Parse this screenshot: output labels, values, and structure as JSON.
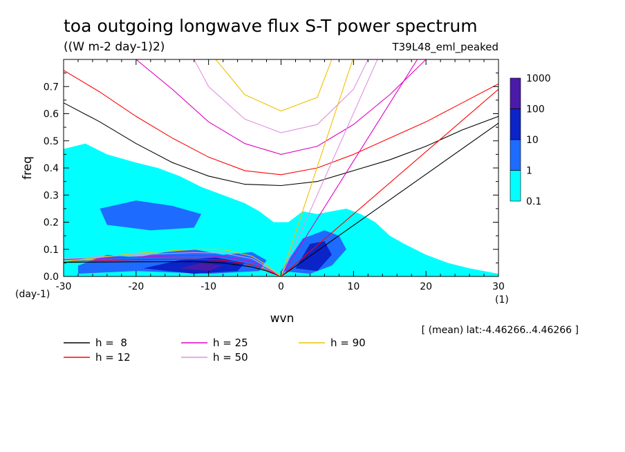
{
  "chart_data": {
    "type": "heatmap",
    "title": "toa outgoing longwave flux S-T power spectrum",
    "subtitle": "((W m-2 day-1)2)",
    "run_label": "T39L48_eml_peaked",
    "xlabel": "wvn",
    "ylabel": "freq",
    "x_unit": "(1)",
    "y_unit": "(day-1)",
    "annotation": "[ (mean) lat:-4.46266..4.46266 ]",
    "xlim": [
      -30,
      30
    ],
    "ylim": [
      0,
      0.8
    ],
    "x_ticks": [
      -30,
      -20,
      -10,
      0,
      10,
      20,
      30
    ],
    "y_ticks": [
      0.0,
      0.1,
      0.2,
      0.3,
      0.4,
      0.5,
      0.6,
      0.7
    ],
    "x_tick_labels": [
      "-30",
      "-20",
      "-10",
      "0",
      "10",
      "20",
      "30"
    ],
    "y_tick_labels": [
      "0.0",
      "0.1",
      "0.2",
      "0.3",
      "0.4",
      "0.5",
      "0.6",
      "0.7"
    ],
    "colorbar": {
      "levels": [
        0.1,
        1,
        10,
        100,
        1000
      ],
      "level_labels": [
        "0.1",
        "1",
        "10",
        "100",
        "1000"
      ],
      "colors": [
        "#00ffff",
        "#1e6bff",
        "#0a24c8",
        "#4a1aa8"
      ]
    },
    "power_regions": [
      {
        "level": 0,
        "polygon": [
          [
            -30,
            0.0
          ],
          [
            -30,
            0.47
          ],
          [
            -27,
            0.49
          ],
          [
            -24,
            0.45
          ],
          [
            -20,
            0.42
          ],
          [
            -17,
            0.4
          ],
          [
            -14,
            0.37
          ],
          [
            -11,
            0.33
          ],
          [
            -8,
            0.3
          ],
          [
            -5,
            0.27
          ],
          [
            -3,
            0.24
          ],
          [
            -1,
            0.2
          ],
          [
            1,
            0.2
          ],
          [
            3,
            0.24
          ],
          [
            5,
            0.23
          ],
          [
            7,
            0.24
          ],
          [
            9,
            0.25
          ],
          [
            11,
            0.23
          ],
          [
            13,
            0.2
          ],
          [
            15,
            0.15
          ],
          [
            17,
            0.12
          ],
          [
            20,
            0.08
          ],
          [
            23,
            0.05
          ],
          [
            26,
            0.03
          ],
          [
            30,
            0.01
          ],
          [
            30,
            0.0
          ]
        ]
      },
      {
        "level": 1,
        "polygon": [
          [
            -28,
            0.04
          ],
          [
            -24,
            0.08
          ],
          [
            -20,
            0.07
          ],
          [
            -16,
            0.09
          ],
          [
            -12,
            0.1
          ],
          [
            -8,
            0.08
          ],
          [
            -4,
            0.09
          ],
          [
            -2,
            0.06
          ],
          [
            -3,
            0.02
          ],
          [
            -10,
            0.01
          ],
          [
            -20,
            0.02
          ],
          [
            -28,
            0.01
          ]
        ]
      },
      {
        "level": 1,
        "polygon": [
          [
            -25,
            0.25
          ],
          [
            -20,
            0.28
          ],
          [
            -15,
            0.26
          ],
          [
            -11,
            0.23
          ],
          [
            -12,
            0.18
          ],
          [
            -18,
            0.17
          ],
          [
            -24,
            0.19
          ]
        ]
      },
      {
        "level": 1,
        "polygon": [
          [
            0,
            0.02
          ],
          [
            3,
            0.14
          ],
          [
            6,
            0.17
          ],
          [
            8,
            0.15
          ],
          [
            9,
            0.1
          ],
          [
            7,
            0.04
          ],
          [
            4,
            0.01
          ]
        ]
      },
      {
        "level": 2,
        "polygon": [
          [
            -19,
            0.03
          ],
          [
            -14,
            0.06
          ],
          [
            -9,
            0.07
          ],
          [
            -5,
            0.05
          ],
          [
            -6,
            0.02
          ],
          [
            -12,
            0.01
          ]
        ]
      },
      {
        "level": 2,
        "polygon": [
          [
            2,
            0.03
          ],
          [
            4,
            0.12
          ],
          [
            6,
            0.13
          ],
          [
            7,
            0.08
          ],
          [
            5,
            0.02
          ]
        ]
      },
      {
        "level": 3,
        "polygon": [
          [
            -14,
            0.03
          ],
          [
            -11,
            0.05
          ],
          [
            -8,
            0.04
          ],
          [
            -10,
            0.02
          ]
        ]
      }
    ],
    "dispersion_legend": [
      {
        "label": "h =  8",
        "color": "#000000"
      },
      {
        "label": "h = 12",
        "color": "#ff0000"
      },
      {
        "label": "h = 25",
        "color": "#e000c0"
      },
      {
        "label": "h = 50",
        "color": "#e090e0"
      },
      {
        "label": "h = 90",
        "color": "#f0c000"
      }
    ],
    "dispersion_curves": [
      {
        "h": 8,
        "color": "#000000",
        "kelvin": [
          [
            0,
            0
          ],
          [
            30,
            0.565
          ]
        ],
        "rossby": [
          [
            -30,
            0.052
          ],
          [
            -20,
            0.054
          ],
          [
            -12,
            0.055
          ],
          [
            -8,
            0.05
          ],
          [
            -4,
            0.035
          ],
          [
            -2,
            0.02
          ],
          [
            0,
            0
          ]
        ],
        "ig": [
          [
            -30,
            0.64
          ],
          [
            -25,
            0.57
          ],
          [
            -20,
            0.49
          ],
          [
            -15,
            0.42
          ],
          [
            -10,
            0.37
          ],
          [
            -5,
            0.34
          ],
          [
            0,
            0.335
          ],
          [
            5,
            0.35
          ],
          [
            10,
            0.39
          ],
          [
            15,
            0.43
          ],
          [
            20,
            0.48
          ],
          [
            25,
            0.54
          ],
          [
            30,
            0.59
          ]
        ]
      },
      {
        "h": 12,
        "color": "#ff0000",
        "kelvin": [
          [
            0,
            0
          ],
          [
            30,
            0.69
          ]
        ],
        "rossby": [
          [
            -30,
            0.055
          ],
          [
            -20,
            0.062
          ],
          [
            -12,
            0.064
          ],
          [
            -8,
            0.06
          ],
          [
            -4,
            0.043
          ],
          [
            -2,
            0.024
          ],
          [
            0,
            0
          ]
        ],
        "ig": [
          [
            -30,
            0.76
          ],
          [
            -25,
            0.68
          ],
          [
            -20,
            0.59
          ],
          [
            -15,
            0.51
          ],
          [
            -10,
            0.44
          ],
          [
            -5,
            0.39
          ],
          [
            0,
            0.375
          ],
          [
            5,
            0.4
          ],
          [
            10,
            0.45
          ],
          [
            15,
            0.51
          ],
          [
            20,
            0.57
          ],
          [
            25,
            0.64
          ],
          [
            30,
            0.71
          ]
        ]
      },
      {
        "h": 25,
        "color": "#e000c0",
        "kelvin": [
          [
            0,
            0
          ],
          [
            18.8,
            0.8
          ]
        ],
        "rossby": [
          [
            -30,
            0.062
          ],
          [
            -20,
            0.072
          ],
          [
            -12,
            0.078
          ],
          [
            -8,
            0.074
          ],
          [
            -4,
            0.055
          ],
          [
            -2,
            0.03
          ],
          [
            0,
            0
          ]
        ],
        "ig": [
          [
            -20,
            0.8
          ],
          [
            -15,
            0.69
          ],
          [
            -10,
            0.57
          ],
          [
            -5,
            0.49
          ],
          [
            0,
            0.45
          ],
          [
            5,
            0.48
          ],
          [
            10,
            0.56
          ],
          [
            15,
            0.67
          ],
          [
            20,
            0.8
          ]
        ]
      },
      {
        "h": 50,
        "color": "#e090e0",
        "kelvin": [
          [
            0,
            0
          ],
          [
            13.3,
            0.8
          ]
        ],
        "rossby": [
          [
            -30,
            0.066
          ],
          [
            -20,
            0.08
          ],
          [
            -12,
            0.088
          ],
          [
            -8,
            0.086
          ],
          [
            -4,
            0.066
          ],
          [
            -2,
            0.036
          ],
          [
            0,
            0
          ]
        ],
        "ig": [
          [
            -12,
            0.8
          ],
          [
            -10,
            0.7
          ],
          [
            -5,
            0.58
          ],
          [
            0,
            0.53
          ],
          [
            5,
            0.56
          ],
          [
            10,
            0.69
          ],
          [
            12,
            0.8
          ]
        ]
      },
      {
        "h": 90,
        "color": "#f0c000",
        "kelvin": [
          [
            0,
            0
          ],
          [
            9.9,
            0.8
          ]
        ],
        "rossby": [
          [
            -30,
            0.055
          ],
          [
            -20,
            0.085
          ],
          [
            -12,
            0.1
          ],
          [
            -8,
            0.1
          ],
          [
            -4,
            0.075
          ],
          [
            -2,
            0.042
          ],
          [
            0,
            0
          ]
        ],
        "ig": [
          [
            -9,
            0.8
          ],
          [
            -5,
            0.67
          ],
          [
            0,
            0.61
          ],
          [
            5,
            0.66
          ],
          [
            7,
            0.8
          ]
        ]
      }
    ]
  }
}
